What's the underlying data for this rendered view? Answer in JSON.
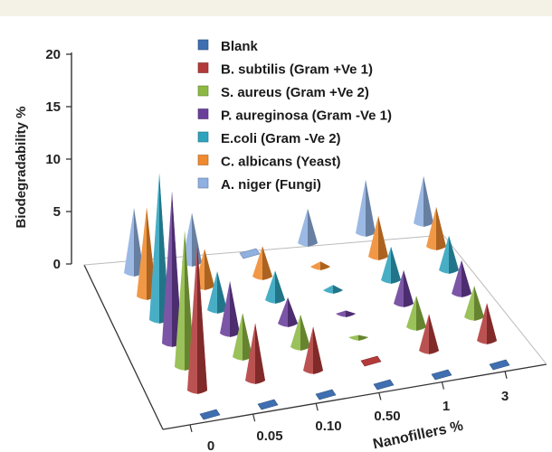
{
  "chart_data": {
    "type": "3d-cone",
    "title": "",
    "xlabel": "Nanofillers %",
    "ylabel": "Biodegradability %",
    "categories": [
      "0",
      "0.05",
      "0.10",
      "0.50",
      "1",
      "3"
    ],
    "yticks": [
      "0",
      "5",
      "10",
      "15",
      "20"
    ],
    "ylim": [
      0,
      20
    ],
    "legend_position": "top-right",
    "series": [
      {
        "name": "Blank",
        "color": "#3f6fb0",
        "values": [
          0,
          0,
          0,
          0,
          0,
          0
        ]
      },
      {
        "name": "B. subtilis (Gram +Ve 1)",
        "color": "#b23a3a",
        "values": [
          14,
          5.5,
          4.2,
          0,
          3.5,
          3.6
        ]
      },
      {
        "name": "S. aureus (Gram +Ve 2)",
        "color": "#8db843",
        "values": [
          13,
          4.2,
          3.1,
          0.2,
          3,
          3
        ]
      },
      {
        "name": "P. aureginosa (Gram -Ve 1)",
        "color": "#6a3f9a",
        "values": [
          14.5,
          5,
          2.5,
          0.3,
          3.2,
          3.2
        ]
      },
      {
        "name": "E.coli (Gram -Ve 2)",
        "color": "#2fa3bd",
        "values": [
          14,
          3.7,
          2.8,
          0.5,
          3.2,
          3.3
        ]
      },
      {
        "name": "C. albicans (Yeast)",
        "color": "#ef8a2e",
        "values": [
          8.5,
          3.6,
          2.9,
          0.5,
          3.9,
          3.8
        ]
      },
      {
        "name": "A. niger (Fungi)",
        "color": "#8fb0e0",
        "values": [
          6.2,
          4.8,
          0,
          3.3,
          5.1,
          4.5
        ]
      }
    ]
  }
}
